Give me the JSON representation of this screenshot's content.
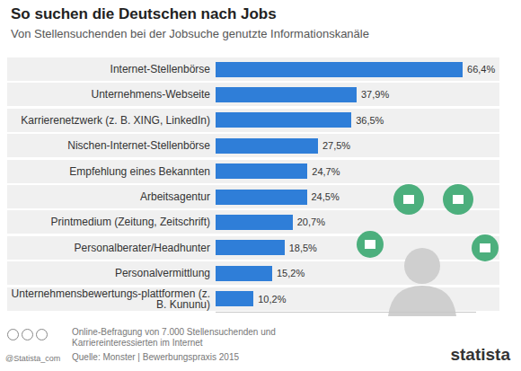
{
  "chart_data": {
    "type": "bar",
    "title": "So suchen die Deutschen nach Jobs",
    "subtitle": "Von Stellensuchenden bei der Jobsuche genutzte Informationskanäle",
    "categories": [
      "Internet-Stellenbörse",
      "Unternehmens-Webseite",
      "Karrierenetzwerk (z. B. XING, LinkedIn)",
      "Nischen-Internet-Stellenbörse",
      "Empfehlung eines Bekannten",
      "Arbeitsagentur",
      "Printmedium (Zeitung, Zeitschrift)",
      "Personalberater/Headhunter",
      "Personalvermittlung",
      "Unternehmensbewertungs-plattformen (z. B. Kununu)"
    ],
    "values": [
      66.4,
      37.9,
      36.5,
      27.5,
      24.7,
      24.5,
      20.7,
      18.5,
      15.2,
      10.2
    ],
    "value_labels": [
      "66,4%",
      "37,9%",
      "36,5%",
      "27,5%",
      "24,7%",
      "24,5%",
      "20,7%",
      "18,5%",
      "15,2%",
      "10,2%"
    ],
    "color": "#2f7ed8",
    "orientation": "horizontal",
    "data_labels": true,
    "tick_labels": "y",
    "xlim": [
      0,
      70
    ],
    "annotations": [
      "Online-Befragung von 7.000 Stellensuchenden und Karriereinteressierten im Internet",
      "Quelle: Monster | Bewerbungspraxis 2015",
      "@Statista_com",
      "statista"
    ]
  }
}
